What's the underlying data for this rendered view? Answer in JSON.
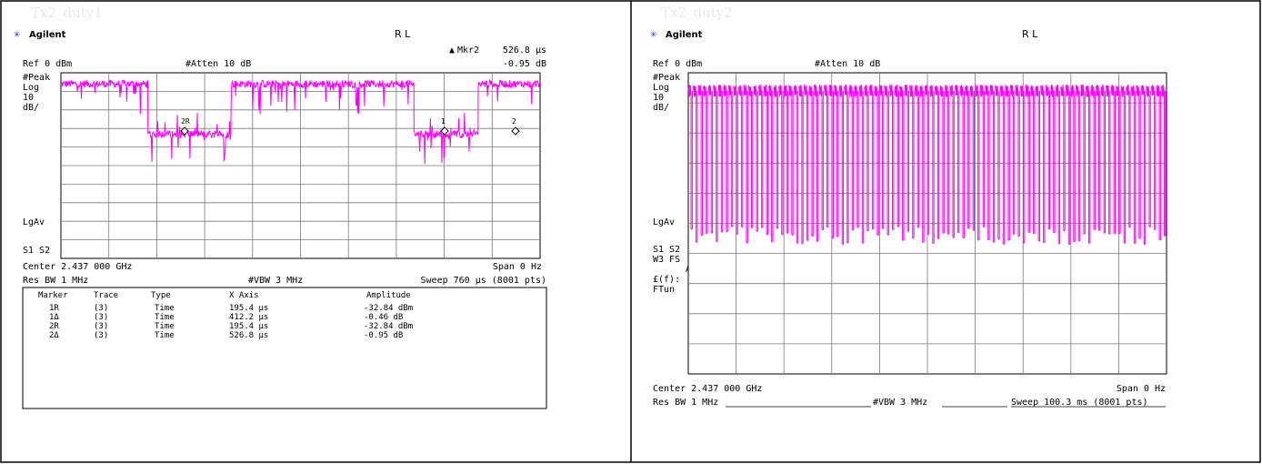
{
  "colors": {
    "trace": "#ff00ff",
    "grid": "#7a7a7a",
    "brand": "#3333cc",
    "cell_title": "#e8e8e8"
  },
  "panels": [
    {
      "cell_title": "Tx2_duty1",
      "brand": "Agilent",
      "mode": "R L",
      "marker_readout": {
        "label": "Mkr2",
        "value": "526.8 µs",
        "amplitude": "-0.95 dB"
      },
      "ref": "Ref 0 dBm",
      "atten": "#Atten 10 dB",
      "side_labels": [
        "#Peak",
        "Log",
        "10",
        "dB/",
        "LgAv",
        "S1  S2"
      ],
      "center": "Center 2.437 000 GHz",
      "span": "Span 0 Hz",
      "res_bw": "Res BW 1 MHz",
      "vbw": "#VBW 3 MHz",
      "sweep": "Sweep 760 µs (8001 pts)",
      "marker_table": {
        "headers": [
          "Marker",
          "Trace",
          "Type",
          "X Axis",
          "Amplitude"
        ],
        "rows": [
          [
            "1R",
            "(3)",
            "Time",
            "195.4 µs",
            "-32.84 dBm"
          ],
          [
            "1Δ",
            "(3)",
            "Time",
            "412.2 µs",
            "-0.46 dB"
          ],
          [
            "2R",
            "(3)",
            "Time",
            "195.4 µs",
            "-32.84 dBm"
          ],
          [
            "2Δ",
            "(3)",
            "Time",
            "526.8 µs",
            "-0.95 dB"
          ]
        ]
      },
      "chart_markers": [
        "2R",
        "1",
        "2"
      ]
    },
    {
      "cell_title": "Tx2_duty2",
      "brand": "Agilent",
      "mode": "R L",
      "ref": "Ref 0 dBm",
      "atten": "#Atten 10 dB",
      "side_labels": [
        "#Peak",
        "Log",
        "10",
        "dB/",
        "LgAv",
        "S1  S2",
        "W3  FS",
        "AA",
        "£(f):",
        "FTun"
      ],
      "center": "Center 2.437 000 GHz",
      "span": "Span 0 Hz",
      "res_bw": "Res BW 1 MHz",
      "vbw": "#VBW 3 MHz",
      "sweep": "Sweep 100.3 ms (8001 pts)"
    }
  ],
  "chart_data": [
    {
      "type": "line",
      "series": [
        {
          "values": []
        }
      ],
      "x_unit": "µs",
      "xlim": [
        0,
        760
      ],
      "ylim": [
        -100,
        0
      ],
      "y_unit": "dBm",
      "y_scale": "10 dB/div",
      "grid": true,
      "envelope": [
        {
          "x_start": 0,
          "x_end": 138,
          "level": -6
        },
        {
          "x_start": 138,
          "x_end": 270,
          "level": -33
        },
        {
          "x_start": 270,
          "x_end": 560,
          "level": -6
        },
        {
          "x_start": 560,
          "x_end": 662,
          "level": -33
        },
        {
          "x_start": 662,
          "x_end": 760,
          "level": -6
        }
      ]
    },
    {
      "type": "line",
      "series": [
        {
          "values": []
        }
      ],
      "x_unit": "ms",
      "xlim": [
        0,
        100.3
      ],
      "ylim": [
        -100,
        0
      ],
      "y_unit": "dBm",
      "y_scale": "10 dB/div",
      "grid": true,
      "on_level": -6,
      "off_level": -54,
      "burst_count": 95
    }
  ]
}
